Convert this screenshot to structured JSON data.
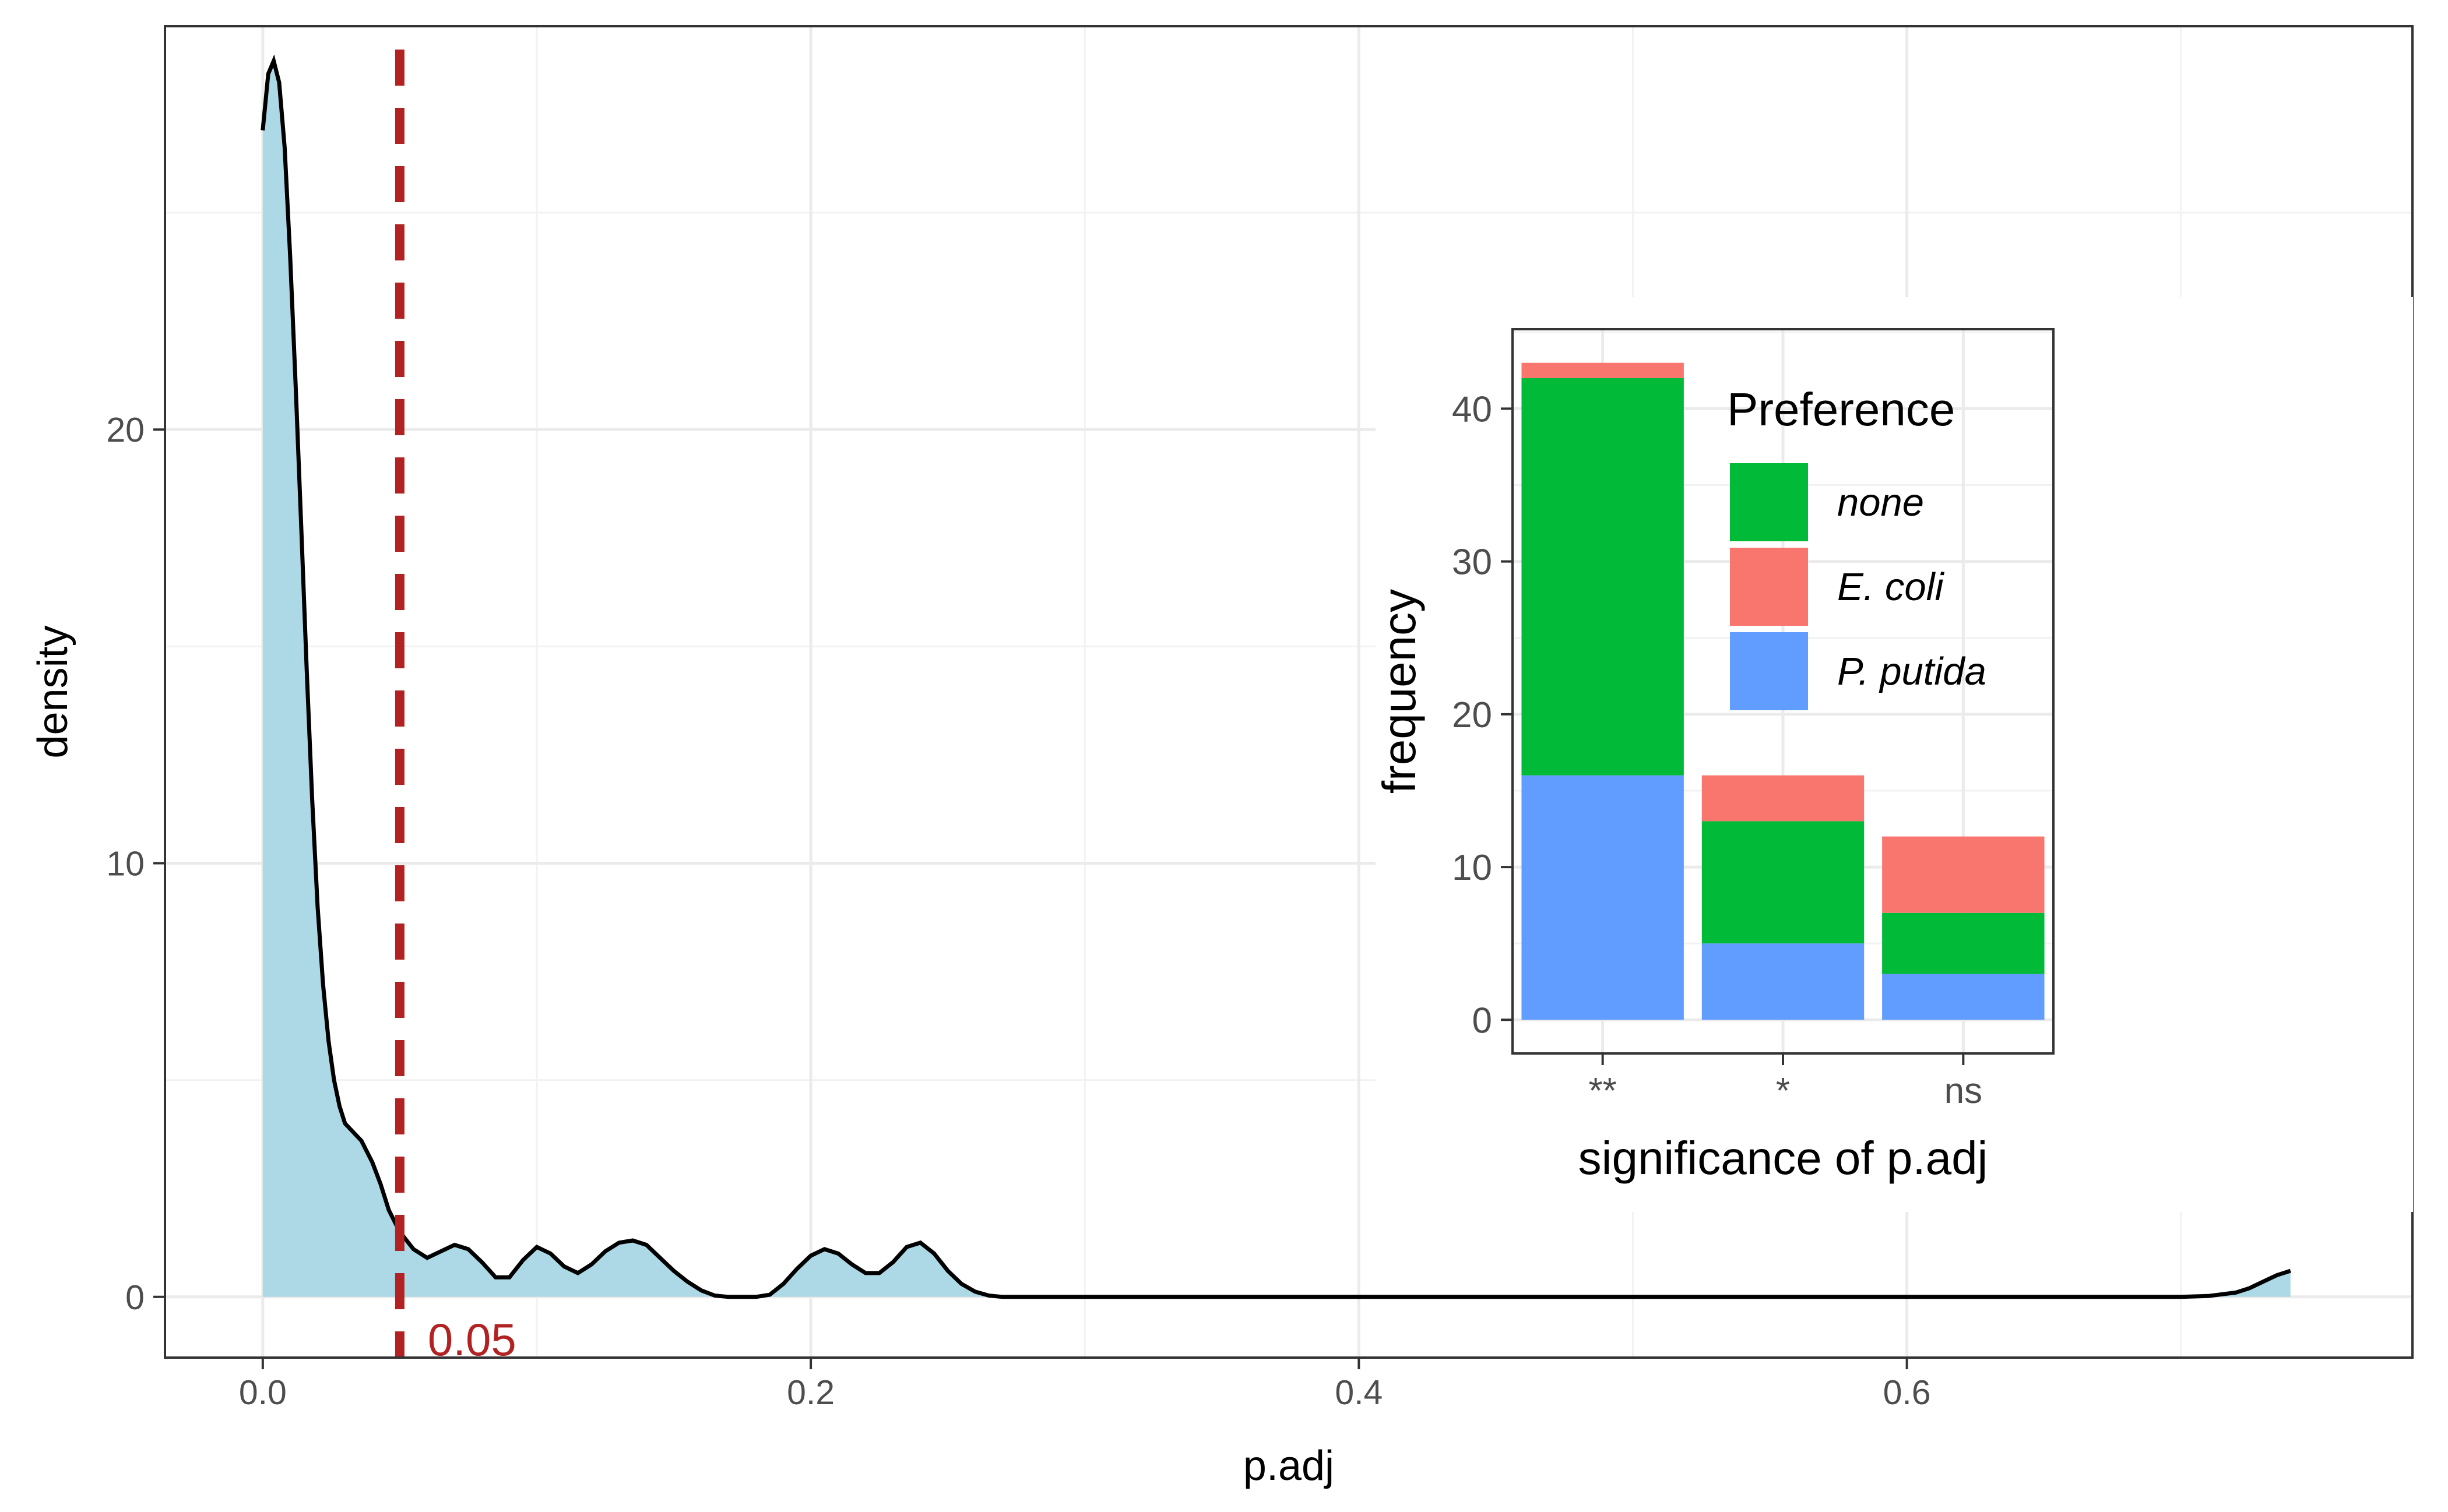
{
  "chart_data": [
    {
      "type": "area",
      "xlabel": "p.adj",
      "ylabel": "density",
      "xlim": [
        -0.0357,
        0.7845
      ],
      "ylim": [
        -1.4,
        29.3
      ],
      "x_ticks": [
        0.0,
        0.2,
        0.4,
        0.6
      ],
      "x_tick_labels": [
        "0.0",
        "0.2",
        "0.4",
        "0.6"
      ],
      "y_ticks": [
        0,
        10,
        20
      ],
      "y_tick_labels": [
        "0",
        "10",
        "20"
      ],
      "grid": true,
      "fill_color": "#add8e6",
      "line_color": "#000000",
      "series": [
        {
          "x": [
            0.0,
            0.002,
            0.004,
            0.006,
            0.008,
            0.01,
            0.012,
            0.014,
            0.016,
            0.018,
            0.02,
            0.022,
            0.024,
            0.026,
            0.028,
            0.03,
            0.033,
            0.036,
            0.04,
            0.043,
            0.046,
            0.05,
            0.055,
            0.06,
            0.065,
            0.07,
            0.075,
            0.08,
            0.085,
            0.09,
            0.095,
            0.1,
            0.105,
            0.11,
            0.115,
            0.12,
            0.125,
            0.13,
            0.135,
            0.14,
            0.145,
            0.15,
            0.155,
            0.16,
            0.165,
            0.17,
            0.175,
            0.18,
            0.185,
            0.19,
            0.195,
            0.2,
            0.205,
            0.21,
            0.215,
            0.22,
            0.225,
            0.23,
            0.235,
            0.24,
            0.245,
            0.25,
            0.255,
            0.26,
            0.265,
            0.27,
            0.275,
            0.28,
            0.285,
            0.29,
            0.295,
            0.3,
            0.35,
            0.4,
            0.45,
            0.5,
            0.55,
            0.6,
            0.65,
            0.7,
            0.71,
            0.72,
            0.725,
            0.73,
            0.735,
            0.74
          ],
          "y": [
            26.9,
            28.2,
            28.5,
            28.0,
            26.5,
            24.0,
            21.0,
            17.8,
            14.5,
            11.5,
            9.0,
            7.2,
            5.9,
            5.0,
            4.4,
            4.0,
            3.8,
            3.6,
            3.1,
            2.6,
            2.0,
            1.5,
            1.1,
            0.9,
            1.05,
            1.2,
            1.1,
            0.8,
            0.45,
            0.45,
            0.85,
            1.15,
            1.0,
            0.7,
            0.55,
            0.75,
            1.05,
            1.25,
            1.3,
            1.2,
            0.9,
            0.6,
            0.35,
            0.15,
            0.03,
            0.0,
            0.0,
            0.0,
            0.05,
            0.3,
            0.65,
            0.95,
            1.1,
            1.0,
            0.75,
            0.55,
            0.55,
            0.8,
            1.15,
            1.25,
            1.0,
            0.6,
            0.3,
            0.12,
            0.03,
            0.0,
            0.0,
            0.0,
            0.0,
            0.0,
            0.0,
            0.0,
            0.0,
            0.0,
            0.0,
            0.0,
            0.0,
            0.0,
            0.0,
            0.0,
            0.02,
            0.1,
            0.2,
            0.35,
            0.5,
            0.6
          ]
        }
      ],
      "annotations": [
        {
          "type": "vline",
          "x": 0.05,
          "color": "#b22222",
          "label": "0.05"
        }
      ]
    },
    {
      "type": "bar",
      "stacked": true,
      "categories": [
        "**",
        "*",
        "ns"
      ],
      "xlabel": "significance of p.adj",
      "ylabel": "frequency",
      "ylim": [
        -2.2,
        45.2
      ],
      "y_ticks": [
        0,
        10,
        20,
        30,
        40
      ],
      "y_tick_labels": [
        "0",
        "10",
        "20",
        "30",
        "40"
      ],
      "grid": true,
      "legend_title": "Preference",
      "legend_position": "top-right",
      "series": [
        {
          "name": "P. putida",
          "color": "#619cff",
          "values": [
            16,
            5,
            3
          ]
        },
        {
          "name": "none",
          "color": "#00ba38",
          "values": [
            26,
            8,
            4
          ]
        },
        {
          "name": "E. coli",
          "color": "#f8766d",
          "values": [
            1,
            3,
            5
          ]
        }
      ],
      "legend_order": [
        "none",
        "E. coli",
        "P. putida"
      ]
    }
  ]
}
